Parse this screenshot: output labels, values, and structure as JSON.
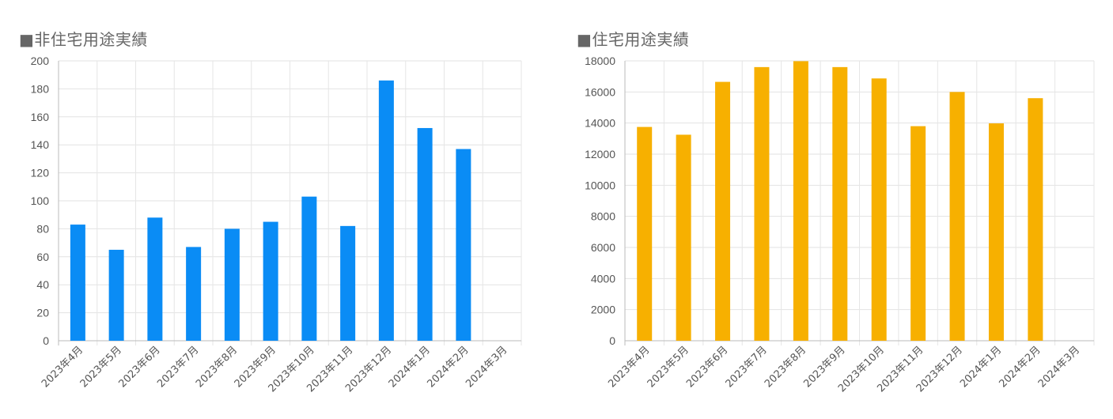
{
  "chart_data": [
    {
      "type": "bar",
      "title": "■非住宅用途実績",
      "categories": [
        "2023年4月",
        "2023年5月",
        "2023年6月",
        "2023年7月",
        "2023年8月",
        "2023年9月",
        "2023年10月",
        "2023年11月",
        "2023年12月",
        "2024年1月",
        "2024年2月",
        "2024年3月"
      ],
      "values": [
        83,
        65,
        88,
        67,
        80,
        85,
        103,
        82,
        186,
        152,
        137,
        null
      ],
      "ylim": [
        0,
        200
      ],
      "yticks": [
        0,
        20,
        40,
        60,
        80,
        100,
        120,
        140,
        160,
        180,
        200
      ],
      "color": "#0a8cf5",
      "grid": true
    },
    {
      "type": "bar",
      "title": "■住宅用途実績",
      "categories": [
        "2023年4月",
        "2023年5月",
        "2023年6月",
        "2023年7月",
        "2023年8月",
        "2023年9月",
        "2023年10月",
        "2023年11月",
        "2023年12月",
        "2024年1月",
        "2024年2月",
        "2024年3月"
      ],
      "values": [
        13750,
        13250,
        16650,
        17600,
        17980,
        17600,
        16870,
        13800,
        16000,
        13980,
        15600,
        null
      ],
      "ylim": [
        0,
        18000
      ],
      "yticks": [
        0,
        2000,
        4000,
        6000,
        8000,
        10000,
        12000,
        14000,
        16000,
        18000
      ],
      "color": "#f7b000",
      "grid": true
    }
  ]
}
